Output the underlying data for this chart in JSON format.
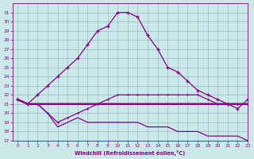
{
  "xlabel": "Windchill (Refroidissement éolien,°C)",
  "bg_color": "#cce9e9",
  "line_color": "#880088",
  "grid_color": "#99bbcc",
  "ylim": [
    17,
    32
  ],
  "xlim": [
    -0.5,
    23
  ],
  "yticks": [
    17,
    18,
    19,
    20,
    21,
    22,
    23,
    24,
    25,
    26,
    27,
    28,
    29,
    30,
    31
  ],
  "xticks": [
    0,
    1,
    2,
    3,
    4,
    5,
    6,
    7,
    8,
    9,
    10,
    11,
    12,
    13,
    14,
    15,
    16,
    17,
    18,
    19,
    20,
    21,
    22,
    23
  ],
  "line_peak_x": [
    0,
    1,
    2,
    3,
    4,
    5,
    6,
    7,
    8,
    9,
    10,
    11,
    12,
    13,
    14,
    15,
    16,
    17,
    18,
    19,
    20,
    21,
    22,
    23
  ],
  "line_peak_y": [
    21.5,
    21.0,
    22.0,
    23.0,
    24.0,
    25.0,
    26.0,
    27.5,
    29.0,
    29.5,
    31.0,
    31.0,
    30.5,
    28.5,
    27.0,
    25.0,
    24.5,
    23.5,
    22.5,
    22.0,
    21.5,
    21.0,
    20.5,
    21.5
  ],
  "line_flat_x": [
    0,
    1,
    2,
    3,
    4,
    5,
    6,
    7,
    8,
    9,
    10,
    11,
    12,
    13,
    14,
    15,
    16,
    17,
    18,
    19,
    20,
    21,
    22,
    23
  ],
  "line_flat_y": [
    21.5,
    21.0,
    21.0,
    21.0,
    21.0,
    21.0,
    21.0,
    21.0,
    21.0,
    21.0,
    21.0,
    21.0,
    21.0,
    21.0,
    21.0,
    21.0,
    21.0,
    21.0,
    21.0,
    21.0,
    21.0,
    21.0,
    21.0,
    21.0
  ],
  "line_dip_x": [
    0,
    1,
    2,
    3,
    4,
    5,
    6,
    7,
    8,
    9,
    10,
    11,
    12,
    13,
    14,
    15,
    16,
    17,
    18,
    19,
    20,
    21,
    22,
    23
  ],
  "line_dip_y": [
    21.5,
    21.0,
    21.0,
    20.0,
    19.0,
    19.5,
    20.0,
    20.5,
    21.0,
    21.5,
    22.0,
    22.0,
    22.0,
    22.0,
    22.0,
    22.0,
    22.0,
    22.0,
    22.0,
    21.5,
    21.0,
    21.0,
    21.0,
    21.0
  ],
  "line_desc_x": [
    0,
    1,
    2,
    3,
    4,
    5,
    6,
    7,
    8,
    9,
    10,
    11,
    12,
    13,
    14,
    15,
    16,
    17,
    18,
    19,
    20,
    21,
    22,
    23
  ],
  "line_desc_y": [
    21.5,
    21.0,
    21.0,
    20.0,
    18.5,
    19.0,
    19.5,
    19.0,
    19.0,
    19.0,
    19.0,
    19.0,
    19.0,
    18.5,
    18.5,
    18.5,
    18.0,
    18.0,
    18.0,
    17.5,
    17.5,
    17.5,
    17.5,
    17.0
  ]
}
